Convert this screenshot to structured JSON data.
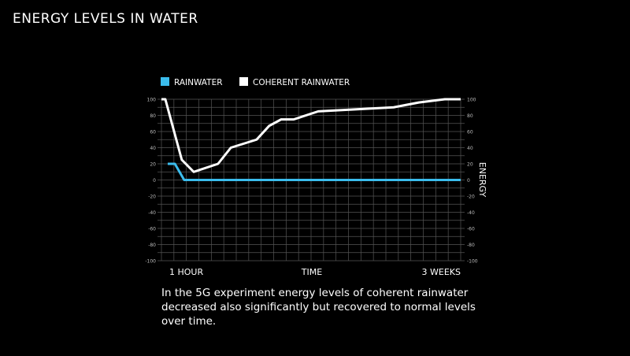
{
  "title": "ENERGY LEVELS IN WATER",
  "caption": "In the 5G experiment energy levels of coherent rainwater decreased also significantly but recovered to normal levels over time.",
  "chart_data": {
    "type": "line",
    "title": "ENERGY LEVELS IN WATER",
    "xlabel": "TIME",
    "ylabel": "ENERGY",
    "x_tick_labels": [
      "1 HOUR",
      "3 WEEKS"
    ],
    "xlim": [
      0,
      100
    ],
    "ylim": [
      -100,
      100
    ],
    "y_ticks": [
      100,
      80,
      60,
      40,
      20,
      0,
      -20,
      -40,
      -60,
      -80,
      -100
    ],
    "grid": true,
    "legend_position": "top",
    "series": [
      {
        "name": "RAINWATER",
        "color": "#3bbcec",
        "x": [
          2.1,
          4.5,
          7.6,
          100
        ],
        "y": [
          20,
          20,
          0,
          0
        ]
      },
      {
        "name": "COHERENT RAINWATER",
        "color": "#ffffff",
        "x": [
          0,
          1.3,
          6.8,
          10.8,
          18.9,
          23.2,
          31.8,
          36,
          40,
          44.2,
          52.4,
          77.6,
          86,
          94.7,
          100
        ],
        "y": [
          100,
          100,
          25,
          10,
          20,
          40,
          50,
          67,
          75,
          75,
          85,
          90,
          96,
          100,
          100
        ]
      }
    ]
  }
}
